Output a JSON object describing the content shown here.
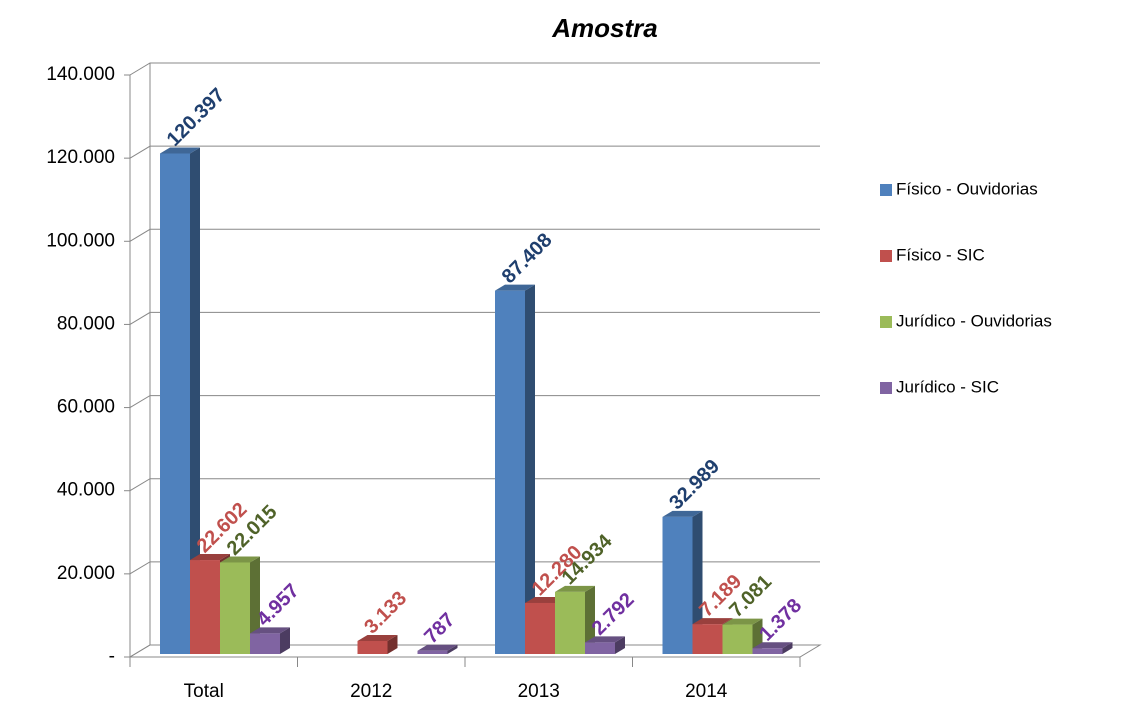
{
  "chart_data": {
    "type": "bar3d",
    "title": "Amostra",
    "categories": [
      "Total",
      "2012",
      "2013",
      "2014"
    ],
    "series": [
      {
        "name": "Físico -  Ouvidorias",
        "color": "#4f81bd",
        "label_color": "#1f3f6e",
        "values": [
          120397,
          null,
          87408,
          32989
        ],
        "value_labels": [
          "120.397",
          null,
          "87.408",
          "32.989"
        ]
      },
      {
        "name": "Físico -  SIC",
        "color": "#c0504d",
        "label_color": "#c0504d",
        "values": [
          22602,
          3133,
          12280,
          7189
        ],
        "value_labels": [
          "22.602",
          "3.133",
          "12.280",
          "7.189"
        ]
      },
      {
        "name": "Jurídico -  Ouvidorias",
        "color": "#9bbb59",
        "label_color": "#4f6228",
        "values": [
          22015,
          null,
          14934,
          7081
        ],
        "value_labels": [
          "22.015",
          null,
          "14.934",
          "7.081"
        ]
      },
      {
        "name": "Jurídico -  SIC",
        "color": "#8064a2",
        "label_color": "#7030a0",
        "values": [
          4957,
          787,
          2792,
          1378
        ],
        "value_labels": [
          "4.957",
          "787",
          "2.792",
          "1.378"
        ]
      }
    ],
    "ylim": [
      0,
      140000
    ],
    "yticks": [
      {
        "value": 0,
        "label": "-"
      },
      {
        "value": 20000,
        "label": "20.000"
      },
      {
        "value": 40000,
        "label": "40.000"
      },
      {
        "value": 60000,
        "label": "60.000"
      },
      {
        "value": 80000,
        "label": "80.000"
      },
      {
        "value": 100000,
        "label": "100.000"
      },
      {
        "value": 120000,
        "label": "120.000"
      },
      {
        "value": 140000,
        "label": "140.000"
      }
    ],
    "grid": true,
    "legend": "right"
  }
}
